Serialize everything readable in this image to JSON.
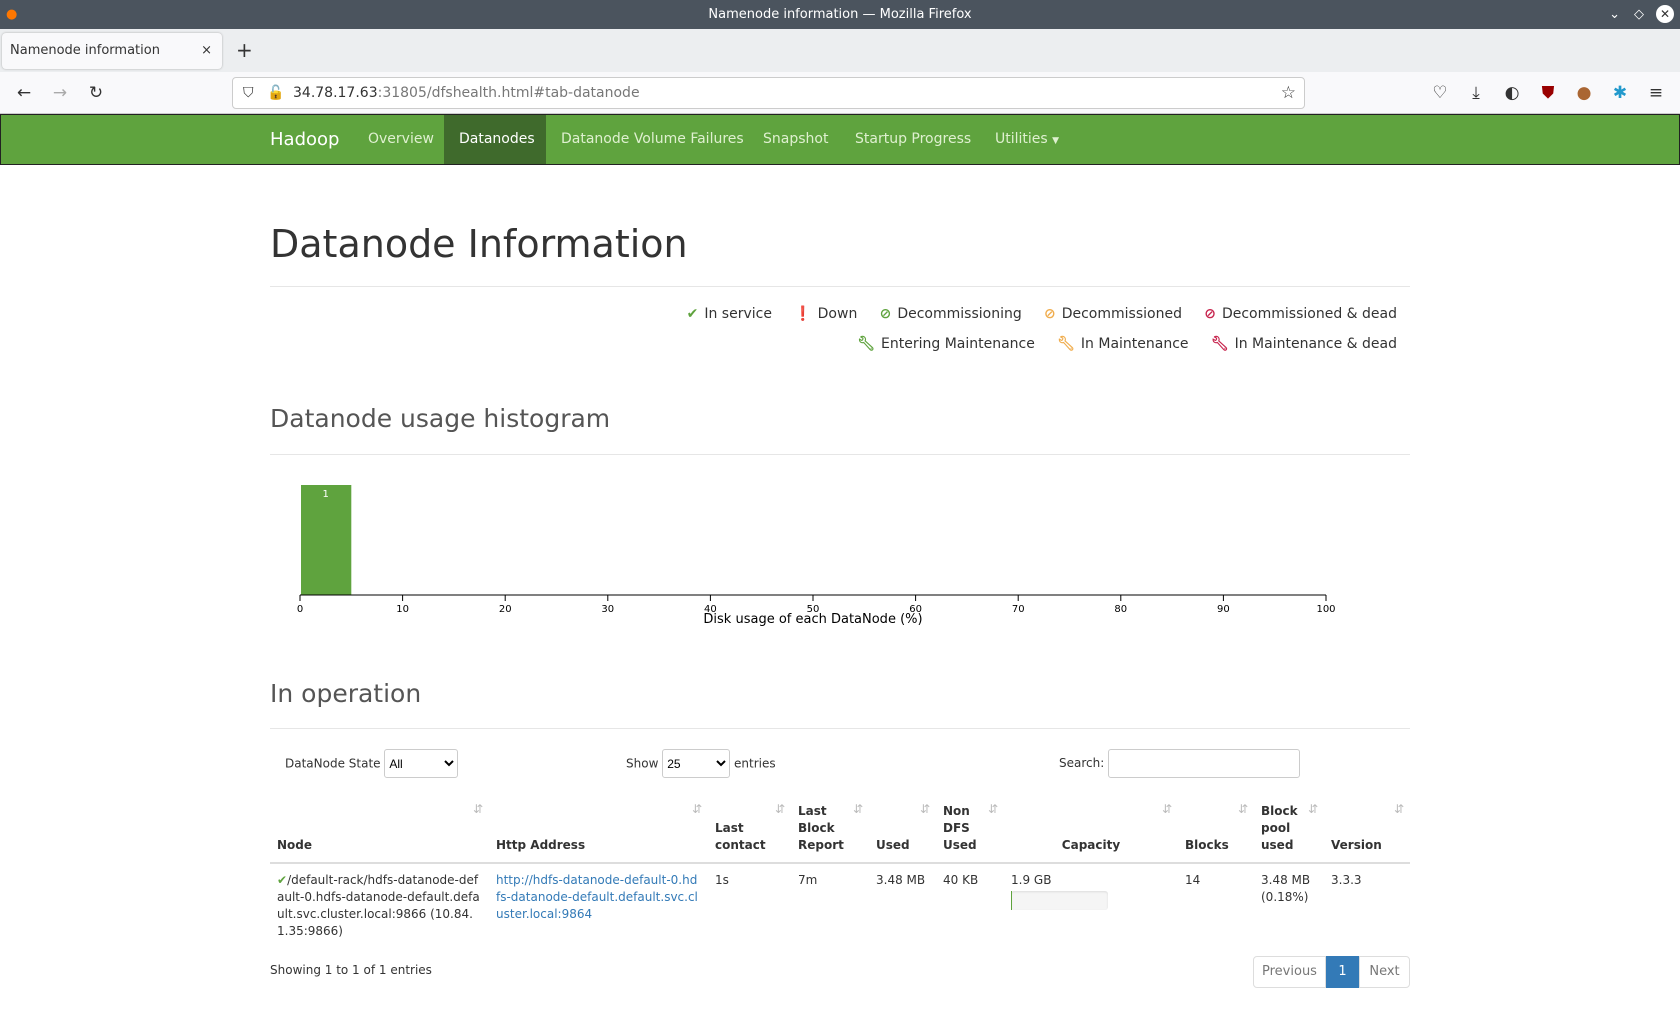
{
  "window": {
    "title": "Namenode information — Mozilla Firefox"
  },
  "browser": {
    "tab_title": "Namenode information",
    "url_host": "34.78.17.63",
    "url_rest": ":31805/dfshealth.html#tab-datanode"
  },
  "nav": {
    "brand": "Hadoop",
    "items": [
      "Overview",
      "Datanodes",
      "Datanode Volume Failures",
      "Snapshot",
      "Startup Progress",
      "Utilities"
    ],
    "active": "Datanodes",
    "accent": "#5fa33e"
  },
  "page": {
    "title": "Datanode Information"
  },
  "legend": {
    "row1": [
      "In service",
      "Down",
      "Decommissioning",
      "Decommissioned",
      "Decommissioned & dead"
    ],
    "row2": [
      "Entering Maintenance",
      "In Maintenance",
      "In Maintenance & dead"
    ]
  },
  "histogram": {
    "heading": "Datanode usage histogram"
  },
  "chart_data": {
    "type": "bar",
    "bins": [
      [
        0,
        5
      ]
    ],
    "values": [
      1
    ],
    "data_labels": [
      "1"
    ],
    "xlabel": "Disk usage of each DataNode (%)",
    "xlim": [
      0,
      100
    ],
    "xticks": [
      0,
      10,
      20,
      30,
      40,
      50,
      60,
      70,
      80,
      90,
      100
    ],
    "color": "#5fa33e",
    "grid": false
  },
  "operation": {
    "heading": "In operation",
    "state_label": "DataNode State",
    "state_value": "All",
    "show_label": "Show",
    "show_value": "25",
    "entries_label": "entries",
    "search_label": "Search:",
    "search_value": "",
    "columns": [
      "Node",
      "Http Address",
      "Last contact",
      "Last Block Report",
      "Used",
      "Non DFS Used",
      "Capacity",
      "Blocks",
      "Block pool used",
      "Version"
    ],
    "rows": [
      {
        "node": "/default-rack/hdfs-datanode-default-0.hdfs-datanode-default.default.svc.cluster.local:9866 (10.84.1.35:9866)",
        "http": "http://hdfs-datanode-default-0.hdfs-datanode-default.default.svc.cluster.local:9864",
        "last_contact": "1s",
        "last_block_report": "7m",
        "used": "3.48 MB",
        "non_dfs": "40 KB",
        "capacity": "1.9 GB",
        "capacity_used_pct": 0.18,
        "blocks": "14",
        "block_pool": "3.48 MB (0.18%)",
        "version": "3.3.3"
      }
    ],
    "info": "Showing 1 to 1 of 1 entries",
    "prev": "Previous",
    "page": "1",
    "next": "Next"
  }
}
